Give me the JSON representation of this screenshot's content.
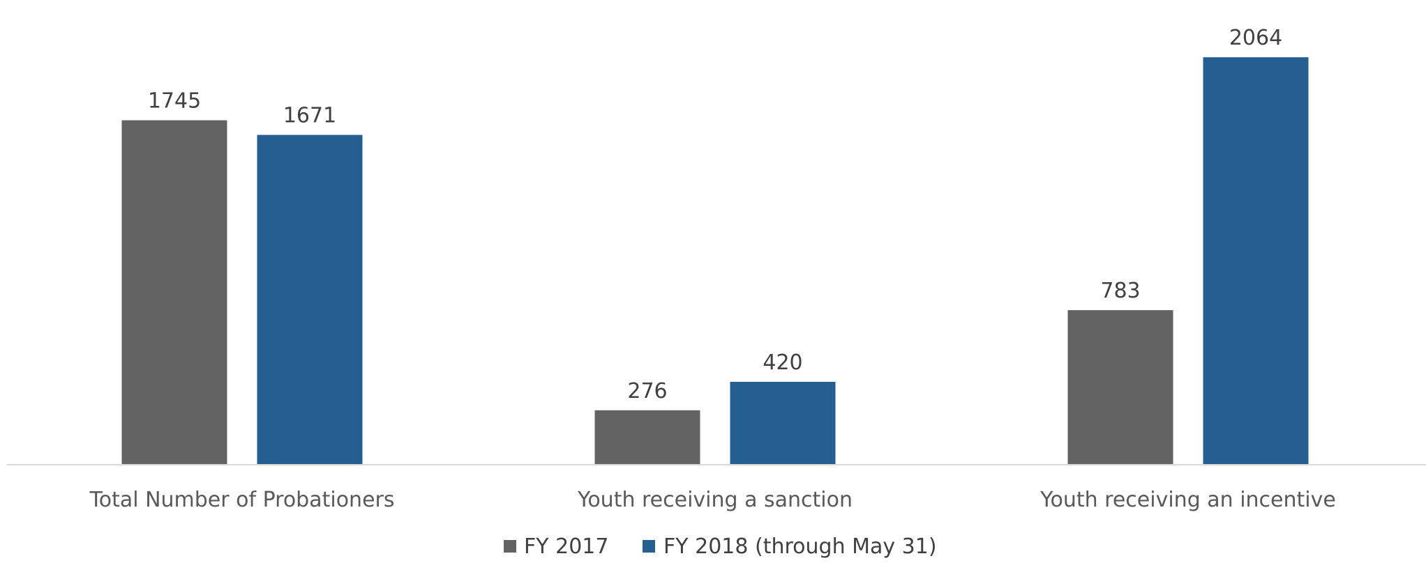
{
  "chart_data": {
    "type": "bar",
    "categories": [
      "Total Number of Probationers",
      "Youth receiving a sanction",
      "Youth receiving an incentive"
    ],
    "series": [
      {
        "name": "FY 2017",
        "values": [
          1745,
          276,
          783
        ],
        "color": "#636363"
      },
      {
        "name": "FY 2018 (through May 31)",
        "values": [
          1671,
          420,
          2064
        ],
        "color": "#255e91"
      }
    ],
    "ylim": [
      0,
      2160
    ],
    "grid": false,
    "data_labels": true,
    "legend_position": "bottom"
  }
}
